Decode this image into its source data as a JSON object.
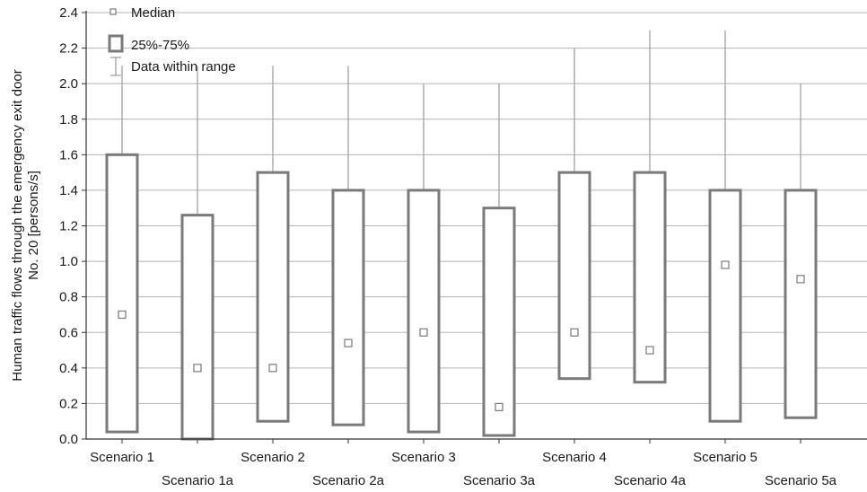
{
  "chart_data": {
    "type": "box",
    "ylabel_line1": "Human traffic flows through the emergency exit door",
    "ylabel_line2": "No. 20 [persons/s]",
    "ylim": [
      0,
      2.4
    ],
    "yticks": [
      "0.0",
      "0.2",
      "0.4",
      "0.6",
      "0.8",
      "1.0",
      "1.2",
      "1.4",
      "1.6",
      "1.8",
      "2.0",
      "2.2",
      "2.4"
    ],
    "grid": true,
    "legend_position": "top-left",
    "legend": {
      "median": "Median",
      "box": "25%-75%",
      "range": "Data within range"
    },
    "categories": [
      "Scenario 1",
      "Scenario 1a",
      "Scenario 2",
      "Scenario 2a",
      "Scenario 3",
      "Scenario 3a",
      "Scenario 4",
      "Scenario 4a",
      "Scenario 5",
      "Scenario 5a"
    ],
    "boxes": [
      {
        "q1": 0.04,
        "q3": 1.6,
        "median": 0.7,
        "min": 0.04,
        "max": 2.1
      },
      {
        "q1": 0.0,
        "q3": 1.26,
        "median": 0.4,
        "min": 0.0,
        "max": 2.1
      },
      {
        "q1": 0.1,
        "q3": 1.5,
        "median": 0.4,
        "min": 0.1,
        "max": 2.1
      },
      {
        "q1": 0.08,
        "q3": 1.4,
        "median": 0.54,
        "min": 0.08,
        "max": 2.1
      },
      {
        "q1": 0.04,
        "q3": 1.4,
        "median": 0.6,
        "min": 0.04,
        "max": 2.0
      },
      {
        "q1": 0.02,
        "q3": 1.3,
        "median": 0.18,
        "min": 0.02,
        "max": 2.0
      },
      {
        "q1": 0.34,
        "q3": 1.5,
        "median": 0.6,
        "min": 0.34,
        "max": 2.2
      },
      {
        "q1": 0.32,
        "q3": 1.5,
        "median": 0.5,
        "min": 0.32,
        "max": 2.3
      },
      {
        "q1": 0.1,
        "q3": 1.4,
        "median": 0.98,
        "min": 0.1,
        "max": 2.3
      },
      {
        "q1": 0.12,
        "q3": 1.4,
        "median": 0.9,
        "min": 0.12,
        "max": 2.0
      }
    ],
    "colors": {
      "box": "#7a7a7a",
      "whisker": "#9a9a9a",
      "grid": "#b5b5b5",
      "axis": "#333333"
    }
  }
}
